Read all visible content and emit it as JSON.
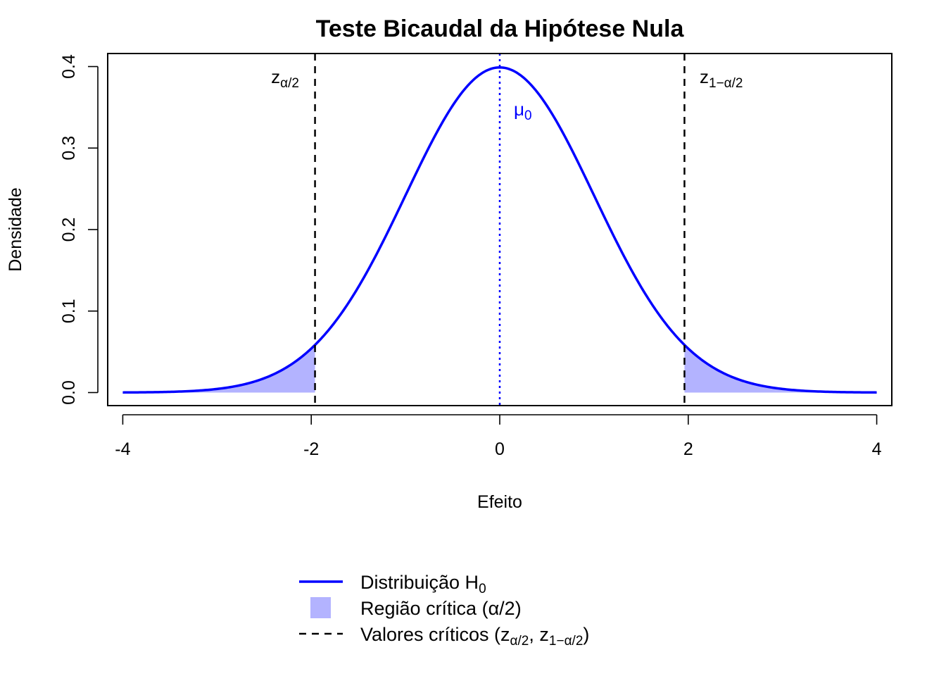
{
  "chart_data": {
    "type": "line",
    "title": "Teste Bicaudal da Hipótese Nula",
    "xlabel": "Efeito",
    "ylabel": "Densidade",
    "xlim": [
      -4.16,
      4.16
    ],
    "ylim": [
      -0.016,
      0.416
    ],
    "x_ticks": [
      -4,
      -2,
      0,
      2,
      4
    ],
    "x_tick_labels": [
      "-4",
      "-2",
      "0",
      "2",
      "4"
    ],
    "y_ticks": [
      0.0,
      0.1,
      0.2,
      0.3,
      0.4
    ],
    "y_tick_labels": [
      "0.0",
      "0.1",
      "0.2",
      "0.3",
      "0.4"
    ],
    "grid": false,
    "series": [
      {
        "name": "Distribuição H0",
        "distribution": "normal",
        "mean": 0,
        "sd": 1,
        "x_range": [
          -4,
          4
        ],
        "color": "#0000ff"
      }
    ],
    "shaded_regions": [
      {
        "name": "Região crítica (α/2)",
        "x_range": [
          -4,
          -1.96
        ],
        "color": "#b3b3ff"
      },
      {
        "name": "Região crítica (α/2)",
        "x_range": [
          1.96,
          4
        ],
        "color": "#b3b3ff"
      }
    ],
    "vlines": [
      {
        "x": -1.96,
        "style": "dashed",
        "color": "#000000"
      },
      {
        "x": 1.96,
        "style": "dashed",
        "color": "#000000"
      },
      {
        "x": 0,
        "style": "dotted",
        "color": "#0000ff"
      }
    ],
    "annotations": {
      "z_lower": {
        "main": "z",
        "sub": "α/2",
        "color": "#000000"
      },
      "z_upper": {
        "main": "z",
        "sub": "1−α/2",
        "color": "#000000"
      },
      "mu0": {
        "main": "μ",
        "sub": "0",
        "color": "#0000ff"
      }
    },
    "legend": {
      "position": "bottom",
      "entries": [
        {
          "type": "line",
          "color": "#0000ff",
          "text": "Distribuição H",
          "sub": "0",
          "tail": ""
        },
        {
          "type": "box",
          "color": "#b3b3ff",
          "text": "Região crítica (α/2)"
        },
        {
          "type": "dashed",
          "color": "#000000",
          "text": "Valores críticos (z",
          "sub1": "α/2",
          "mid": ", z",
          "sub2": "1−α/2",
          "tail": ")"
        }
      ]
    }
  }
}
